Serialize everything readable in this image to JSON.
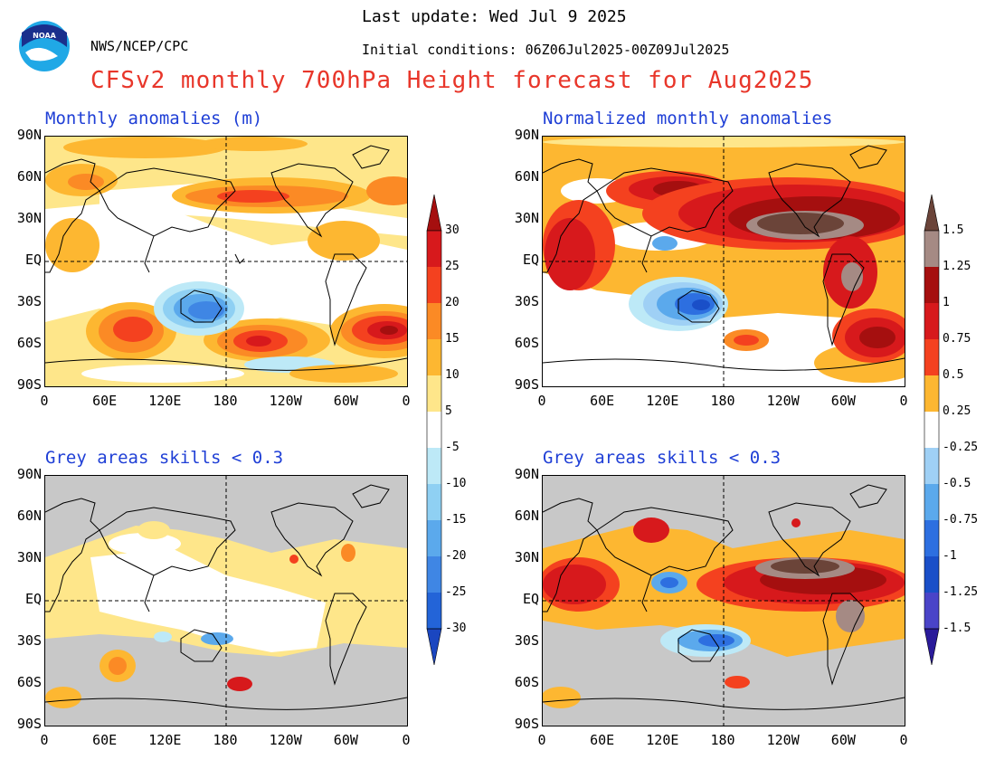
{
  "header": {
    "last_update": "Last update: Wed Jul 9 2025",
    "initial_conditions": "Initial conditions: 06Z06Jul2025-00Z09Jul2025",
    "agency": "NWS/NCEP/CPC",
    "logo_text": "NOAA",
    "main_title": "CFSv2 monthly 700hPa Height forecast for Aug2025"
  },
  "panels": {
    "top_left_title": "Monthly anomalies (m)",
    "top_right_title": "Normalized monthly anomalies",
    "bottom_left_title": "Grey areas skills < 0.3",
    "bottom_right_title": "Grey areas skills < 0.3"
  },
  "axes": {
    "lat_labels": [
      "90N",
      "60N",
      "30N",
      "EQ",
      "30S",
      "60S",
      "90S"
    ],
    "lon_labels": [
      "0",
      "60E",
      "120E",
      "180",
      "120W",
      "60W",
      "0"
    ]
  },
  "colorbar_left": {
    "ticks": [
      "30",
      "25",
      "20",
      "15",
      "10",
      "5",
      "-5",
      "-10",
      "-15",
      "-20",
      "-25",
      "-30"
    ],
    "colors": [
      "#a50f0f",
      "#d7191c",
      "#f4411f",
      "#fb8a25",
      "#fdb731",
      "#fee68a",
      "#ffffff",
      "#bde9f7",
      "#8fd0f3",
      "#5ba9ec",
      "#3f86e4",
      "#2364d8",
      "#1a46c0"
    ]
  },
  "colorbar_right": {
    "ticks": [
      "1.5",
      "1.25",
      "1",
      "0.75",
      "0.5",
      "0.25",
      "-0.25",
      "-0.5",
      "-0.75",
      "-1",
      "-1.25",
      "-1.5"
    ],
    "colors": [
      "#6b4439",
      "#a58a84",
      "#a50f0f",
      "#d7191c",
      "#f4411f",
      "#fdb731",
      "#ffffff",
      "#9fd0f5",
      "#5ba9ec",
      "#2d6fe0",
      "#1a4fc8",
      "#4a44c8",
      "#2a1a9a"
    ]
  }
}
